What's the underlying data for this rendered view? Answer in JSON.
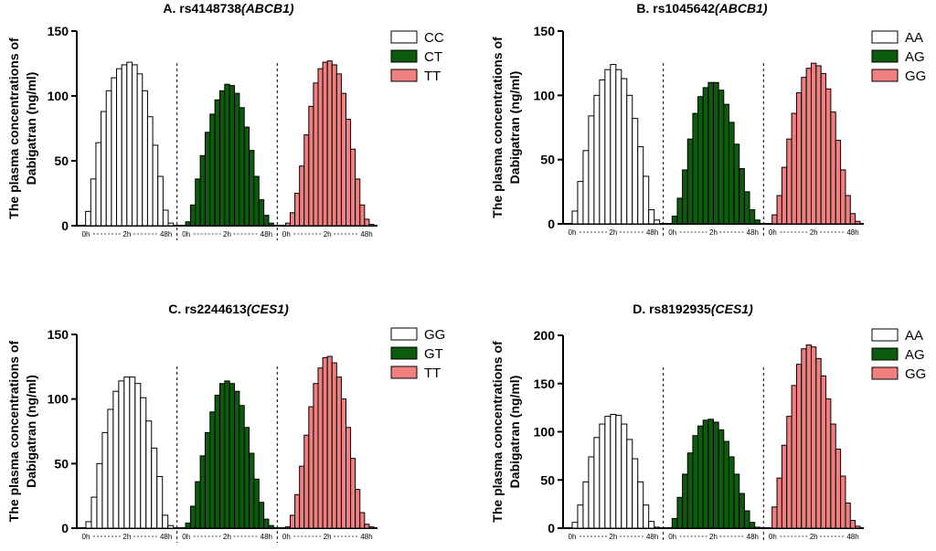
{
  "figure": {
    "label": "Plasma concentration distributions of dabigatran by genotype"
  },
  "chart_data": [
    {
      "type": "bar",
      "title_prefix": "A. rs4148738",
      "title_gene": "(ABCB1)",
      "ylabel_line1": "The plasma concentrations of",
      "ylabel_line2": "Dabigatran (ng/ml)",
      "ylim": [
        0,
        150
      ],
      "yticks": [
        "0",
        "50",
        "100",
        "150"
      ],
      "group_ticks": [
        "0h",
        "2h",
        "48h"
      ],
      "series": [
        {
          "name": "CC",
          "color": "#ffffff",
          "values": [
            0,
            11,
            36,
            64,
            88,
            104,
            114,
            121,
            124,
            126,
            124,
            117,
            104,
            84,
            62,
            38,
            12,
            2
          ]
        },
        {
          "name": "CT",
          "color": "#0d5c0d",
          "values": [
            0,
            3,
            16,
            36,
            54,
            72,
            86,
            97,
            104,
            109,
            108,
            102,
            91,
            76,
            58,
            38,
            20,
            8,
            2
          ]
        },
        {
          "name": "TT",
          "color": "#f08080",
          "values": [
            0,
            2,
            10,
            25,
            46,
            70,
            92,
            110,
            121,
            126,
            127,
            124,
            117,
            102,
            82,
            59,
            36,
            16,
            5,
            1
          ]
        }
      ]
    },
    {
      "type": "bar",
      "title_prefix": "B. rs1045642",
      "title_gene": "(ABCB1)",
      "ylabel_line1": "The plasma concentrations of",
      "ylabel_line2": "Dabigatran (ng/ml)",
      "ylim": [
        0,
        150
      ],
      "yticks": [
        "0",
        "50",
        "100",
        "150"
      ],
      "group_ticks": [
        "0h",
        "2h",
        "48h"
      ],
      "series": [
        {
          "name": "AA",
          "color": "#ffffff",
          "values": [
            0,
            10,
            33,
            57,
            84,
            100,
            112,
            120,
            124,
            120,
            113,
            100,
            82,
            60,
            37,
            11,
            3
          ]
        },
        {
          "name": "AG",
          "color": "#0d5c0d",
          "values": [
            0,
            6,
            20,
            42,
            66,
            86,
            99,
            106,
            110,
            110,
            104,
            93,
            79,
            62,
            43,
            25,
            11,
            3
          ]
        },
        {
          "name": "GG",
          "color": "#f08080",
          "values": [
            0,
            7,
            22,
            44,
            66,
            86,
            102,
            114,
            121,
            125,
            123,
            117,
            105,
            87,
            65,
            42,
            22,
            8,
            2
          ]
        }
      ]
    },
    {
      "type": "bar",
      "title_prefix": "C. rs2244613",
      "title_gene": "(CES1)",
      "ylabel_line1": "The plasma concentrations of",
      "ylabel_line2": "Dabigatran (ng/ml)",
      "ylim": [
        0,
        150
      ],
      "yticks": [
        "0",
        "50",
        "100",
        "150"
      ],
      "group_ticks": [
        "0h",
        "2h",
        "48h"
      ],
      "series": [
        {
          "name": "GG",
          "color": "#ffffff",
          "values": [
            0,
            5,
            24,
            50,
            74,
            92,
            106,
            114,
            117,
            117,
            112,
            101,
            83,
            62,
            40,
            10,
            2
          ]
        },
        {
          "name": "GT",
          "color": "#0d5c0d",
          "values": [
            0,
            4,
            17,
            36,
            56,
            74,
            90,
            103,
            112,
            114,
            112,
            106,
            95,
            78,
            58,
            38,
            20,
            7,
            2
          ]
        },
        {
          "name": "TT",
          "color": "#f08080",
          "values": [
            0,
            1,
            10,
            26,
            48,
            72,
            94,
            112,
            124,
            132,
            133,
            128,
            117,
            100,
            78,
            54,
            30,
            12,
            3,
            1
          ]
        }
      ]
    },
    {
      "type": "bar",
      "title_prefix": "D. rs8192935",
      "title_gene": "(CES1)",
      "ylabel_line1": "The plasma concentrations of",
      "ylabel_line2": "Dabigatran (ng/ml)",
      "ylim": [
        0,
        200
      ],
      "yticks": [
        "0",
        "50",
        "100",
        "150",
        "200"
      ],
      "group_ticks": [
        "0h",
        "2h",
        "48h"
      ],
      "series": [
        {
          "name": "AA",
          "color": "#ffffff",
          "values": [
            0,
            6,
            24,
            48,
            74,
            94,
            108,
            116,
            118,
            117,
            108,
            92,
            72,
            48,
            24,
            7,
            1
          ]
        },
        {
          "name": "AG",
          "color": "#0d5c0d",
          "values": [
            0,
            10,
            32,
            56,
            78,
            96,
            106,
            112,
            113,
            110,
            102,
            90,
            74,
            56,
            36,
            18,
            6,
            1
          ]
        },
        {
          "name": "GG",
          "color": "#f08080",
          "values": [
            0,
            22,
            52,
            86,
            116,
            148,
            170,
            186,
            190,
            188,
            176,
            158,
            134,
            108,
            82,
            54,
            26,
            8,
            2
          ]
        }
      ]
    }
  ]
}
